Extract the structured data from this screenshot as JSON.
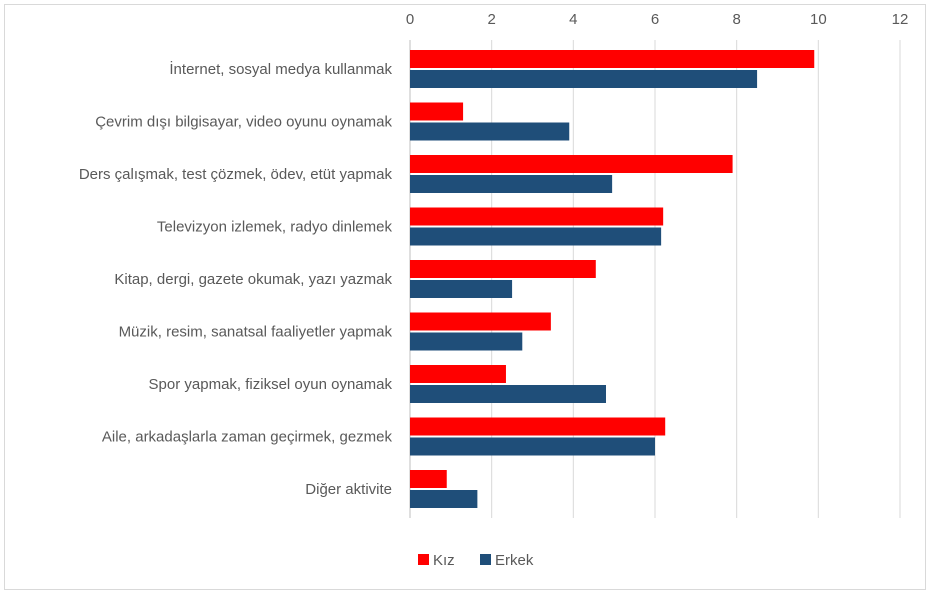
{
  "chart_data": {
    "type": "bar",
    "orientation": "horizontal",
    "title": "",
    "xlabel": "",
    "ylabel": "",
    "xlim": [
      0,
      12
    ],
    "x_ticks": [
      0,
      2,
      4,
      6,
      8,
      10,
      12
    ],
    "x_axis_position": "top",
    "grid": true,
    "legend_position": "bottom-center",
    "categories": [
      "İnternet, sosyal medya kullanmak",
      "Çevrim dışı bilgisayar, video oyunu oynamak",
      "Ders çalışmak, test çözmek, ödev, etüt yapmak",
      "Televizyon izlemek, radyo dinlemek",
      "Kitap, dergi, gazete okumak, yazı yazmak",
      "Müzik, resim, sanatsal faaliyetler yapmak",
      "Spor yapmak, fiziksel oyun oynamak",
      "Aile, arkadaşlarla zaman geçirmek, gezmek",
      "Diğer aktivite"
    ],
    "series": [
      {
        "name": "Kız",
        "color": "#ff0000",
        "values": [
          9.9,
          1.3,
          7.9,
          6.2,
          4.55,
          3.45,
          2.35,
          6.25,
          0.9
        ]
      },
      {
        "name": "Erkek",
        "color": "#1f4e79",
        "values": [
          8.5,
          3.9,
          4.95,
          6.15,
          2.5,
          2.75,
          4.8,
          6.0,
          1.65
        ]
      }
    ]
  }
}
